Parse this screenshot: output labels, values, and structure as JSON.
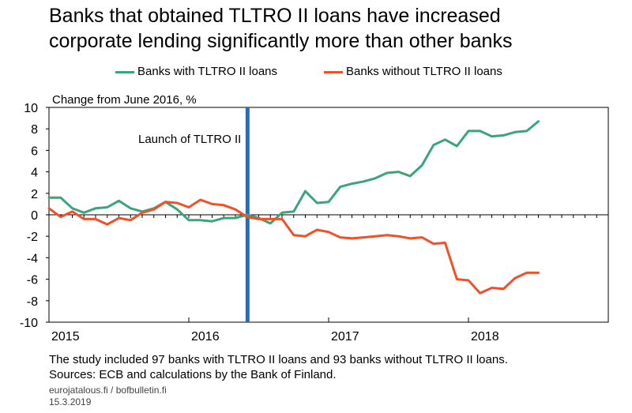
{
  "title_line1": "Banks that obtained TLTRO II loans have increased",
  "title_line2": "corporate lending significantly more than other banks",
  "footnote": "The study included 97 banks with TLTRO II loans and 93 banks without TLTRO II loans.",
  "sources": "Sources: ECB and calculations by the Bank of Finland.",
  "site": "eurojatalous.fi / bofbulletin.fi",
  "date": "15.3.2019",
  "chart_data": {
    "type": "line",
    "ylabel": "Change from June 2016, %",
    "ylim": [
      -10,
      10
    ],
    "yticks": [
      -10,
      -8,
      -6,
      -4,
      -2,
      0,
      2,
      4,
      6,
      8,
      10
    ],
    "xlim": [
      2015.0,
      2019.0
    ],
    "xticks": [
      {
        "label": "2015",
        "x": 2015.0
      },
      {
        "label": "2016",
        "x": 2016.0
      },
      {
        "label": "2017",
        "x": 2017.0
      },
      {
        "label": "2018",
        "x": 2018.0
      }
    ],
    "legend_position": "top",
    "grid": false,
    "annotation": {
      "label": "Launch of TLTRO II",
      "x": 2016.42,
      "color": "#1f6fc1"
    },
    "x": [
      2015.0,
      2015.083,
      2015.167,
      2015.25,
      2015.333,
      2015.417,
      2015.5,
      2015.583,
      2015.667,
      2015.75,
      2015.833,
      2015.917,
      2016.0,
      2016.083,
      2016.167,
      2016.25,
      2016.333,
      2016.417,
      2016.5,
      2016.583,
      2016.667,
      2016.75,
      2016.833,
      2016.917,
      2017.0,
      2017.083,
      2017.167,
      2017.25,
      2017.333,
      2017.417,
      2017.5,
      2017.583,
      2017.667,
      2017.75,
      2017.833,
      2017.917,
      2018.0,
      2018.083,
      2018.167,
      2018.25,
      2018.333,
      2018.417,
      2018.5
    ],
    "series": [
      {
        "name": "Banks with TLTRO II loans",
        "color": "#3aa57a",
        "values": [
          1.6,
          1.6,
          0.6,
          0.2,
          0.6,
          0.7,
          1.3,
          0.6,
          0.3,
          0.6,
          1.2,
          0.5,
          -0.5,
          -0.5,
          -0.6,
          -0.3,
          -0.3,
          0.0,
          -0.3,
          -0.8,
          0.2,
          0.3,
          2.2,
          1.1,
          1.2,
          2.6,
          2.9,
          3.1,
          3.4,
          3.9,
          4.0,
          3.6,
          4.6,
          6.5,
          7.0,
          6.4,
          7.8,
          7.8,
          7.3,
          7.4,
          7.7,
          7.8,
          8.7
        ]
      },
      {
        "name": "Banks without TLTRO II loans",
        "color": "#f0502a",
        "values": [
          0.6,
          -0.2,
          0.3,
          -0.4,
          -0.4,
          -0.9,
          -0.3,
          -0.5,
          0.2,
          0.5,
          1.2,
          1.1,
          0.7,
          1.4,
          1.0,
          0.9,
          0.5,
          -0.2,
          -0.4,
          -0.4,
          -0.4,
          -1.9,
          -2.0,
          -1.4,
          -1.6,
          -2.1,
          -2.2,
          -2.1,
          -2.0,
          -1.9,
          -2.0,
          -2.2,
          -2.1,
          -2.7,
          -2.6,
          -6.0,
          -6.1,
          -7.3,
          -6.8,
          -6.9,
          -5.9,
          -5.4,
          -5.4
        ]
      }
    ]
  }
}
